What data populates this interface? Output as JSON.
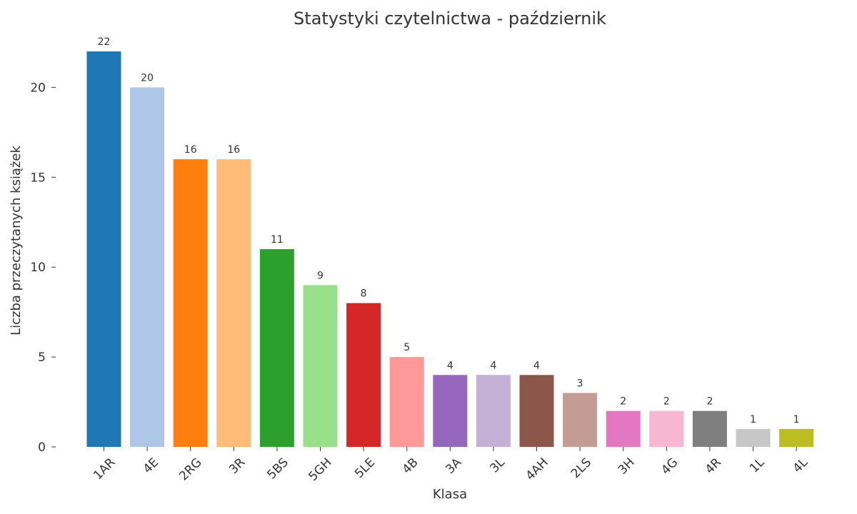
{
  "chart_data": {
    "type": "bar",
    "title": "Statystyki czytelnictwa - październik",
    "xlabel": "Klasa",
    "ylabel": "Liczba przeczytanych książek",
    "categories": [
      "1AR",
      "4E",
      "2RG",
      "3R",
      "5BS",
      "5GH",
      "5LE",
      "4B",
      "3A",
      "3L",
      "4AH",
      "2LS",
      "3H",
      "4G",
      "4R",
      "1L",
      "4L"
    ],
    "values": [
      22,
      20,
      16,
      16,
      11,
      9,
      8,
      5,
      4,
      4,
      4,
      3,
      2,
      2,
      2,
      1,
      1
    ],
    "colors": [
      "#1f77b4",
      "#aec7e8",
      "#ff7f0e",
      "#ffbb78",
      "#2ca02c",
      "#98df8a",
      "#d62728",
      "#ff9896",
      "#9467bd",
      "#c5b0d5",
      "#8c564b",
      "#c49c94",
      "#e377c2",
      "#f7b6d2",
      "#7f7f7f",
      "#c7c7c7",
      "#bcbd22"
    ],
    "yticks": [
      0,
      5,
      10,
      15,
      20
    ],
    "ylim": [
      0,
      22
    ],
    "grid": false,
    "data_labels": true
  }
}
